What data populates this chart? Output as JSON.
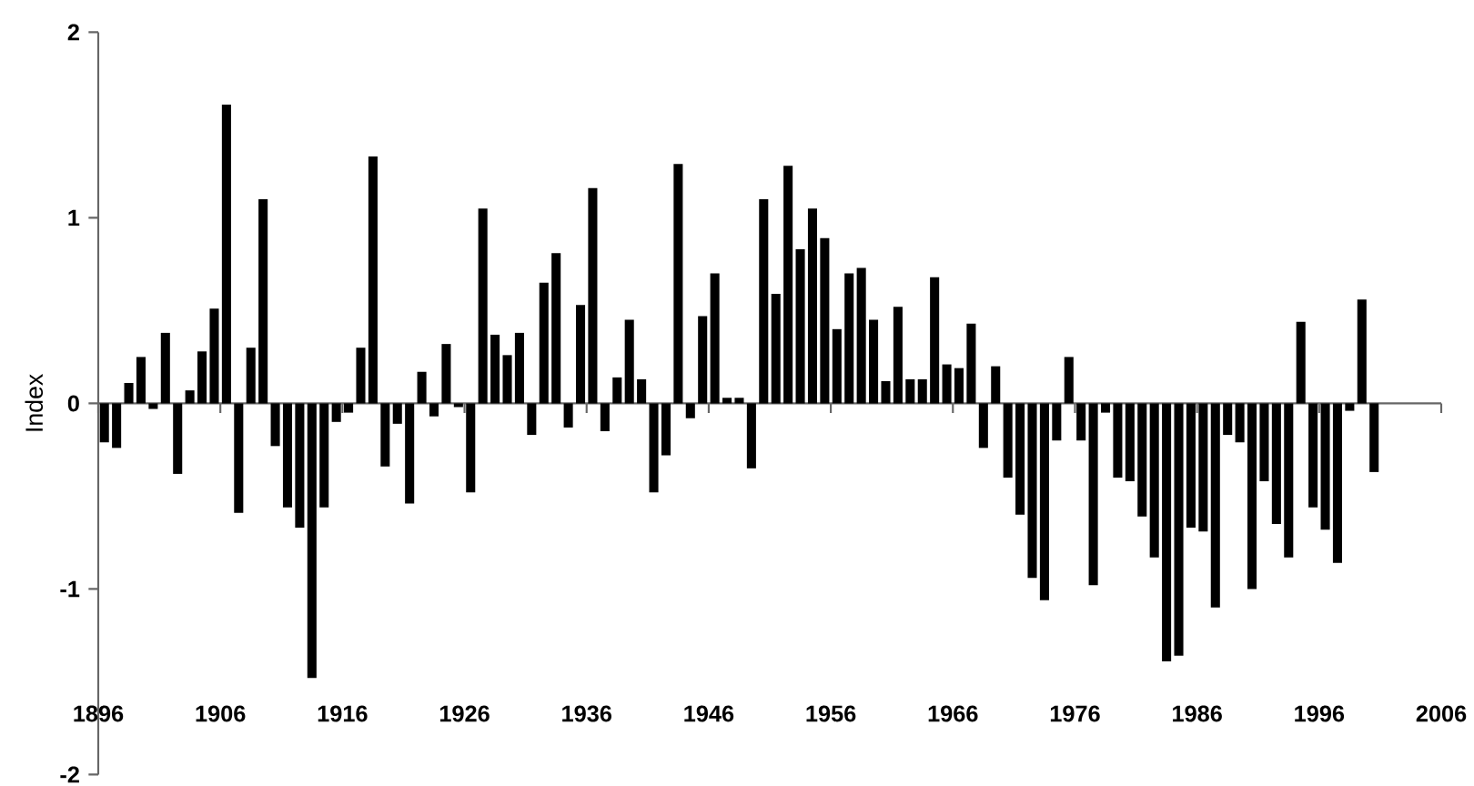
{
  "chart_data": {
    "type": "bar",
    "ylabel": "Index",
    "color": "#000000",
    "x": [
      1896,
      1897,
      1898,
      1899,
      1900,
      1901,
      1902,
      1903,
      1904,
      1905,
      1906,
      1907,
      1908,
      1909,
      1910,
      1911,
      1912,
      1913,
      1914,
      1915,
      1916,
      1917,
      1918,
      1919,
      1920,
      1921,
      1922,
      1923,
      1924,
      1925,
      1926,
      1927,
      1928,
      1929,
      1930,
      1931,
      1932,
      1933,
      1934,
      1935,
      1936,
      1937,
      1938,
      1939,
      1940,
      1941,
      1942,
      1943,
      1944,
      1945,
      1946,
      1947,
      1948,
      1949,
      1950,
      1951,
      1952,
      1953,
      1954,
      1955,
      1956,
      1957,
      1958,
      1959,
      1960,
      1961,
      1962,
      1963,
      1964,
      1965,
      1966,
      1967,
      1968,
      1969,
      1970,
      1971,
      1972,
      1973,
      1974,
      1975,
      1976,
      1977,
      1978,
      1979,
      1980,
      1981,
      1982,
      1983,
      1984,
      1985,
      1986,
      1987,
      1988,
      1989,
      1990,
      1991,
      1992,
      1993,
      1994,
      1995,
      1996,
      1997,
      1998,
      1999,
      2000
    ],
    "values": [
      -0.21,
      -0.24,
      0.11,
      0.25,
      -0.03,
      0.38,
      -0.38,
      0.07,
      0.28,
      0.51,
      1.61,
      -0.59,
      0.3,
      1.1,
      -0.23,
      -0.56,
      -0.67,
      -1.48,
      -0.56,
      -0.1,
      -0.05,
      0.3,
      1.33,
      -0.34,
      -0.11,
      -0.54,
      0.17,
      -0.07,
      0.32,
      -0.02,
      -0.48,
      1.05,
      0.37,
      0.26,
      0.38,
      -0.17,
      0.65,
      0.81,
      -0.13,
      0.53,
      1.16,
      -0.15,
      0.14,
      0.45,
      0.13,
      -0.48,
      -0.28,
      1.29,
      -0.08,
      0.47,
      0.7,
      0.03,
      0.03,
      -0.35,
      1.1,
      0.59,
      1.28,
      0.83,
      1.05,
      0.89,
      0.4,
      0.7,
      0.73,
      0.45,
      0.12,
      0.52,
      0.13,
      0.13,
      0.68,
      0.21,
      0.19,
      0.43,
      -0.24,
      0.2,
      -0.4,
      -0.6,
      -0.94,
      -1.06,
      -0.2,
      0.25,
      -0.2,
      -0.98,
      -0.05,
      -0.4,
      -0.42,
      -0.61,
      -0.83,
      -1.39,
      -1.36,
      -0.67,
      -0.69,
      -1.1,
      -0.17,
      -0.21,
      -1.0,
      -0.42,
      -0.65,
      -0.83,
      0.44,
      -0.56,
      -0.68,
      -0.86,
      -0.04,
      0.56,
      -0.37
    ],
    "xlim": [
      1896,
      2006
    ],
    "xticks": [
      1896,
      1906,
      1916,
      1926,
      1936,
      1946,
      1956,
      1966,
      1976,
      1986,
      1996,
      2006
    ],
    "ylim": [
      -2,
      2
    ],
    "yticks": [
      -2,
      -1,
      0,
      1,
      2
    ]
  }
}
